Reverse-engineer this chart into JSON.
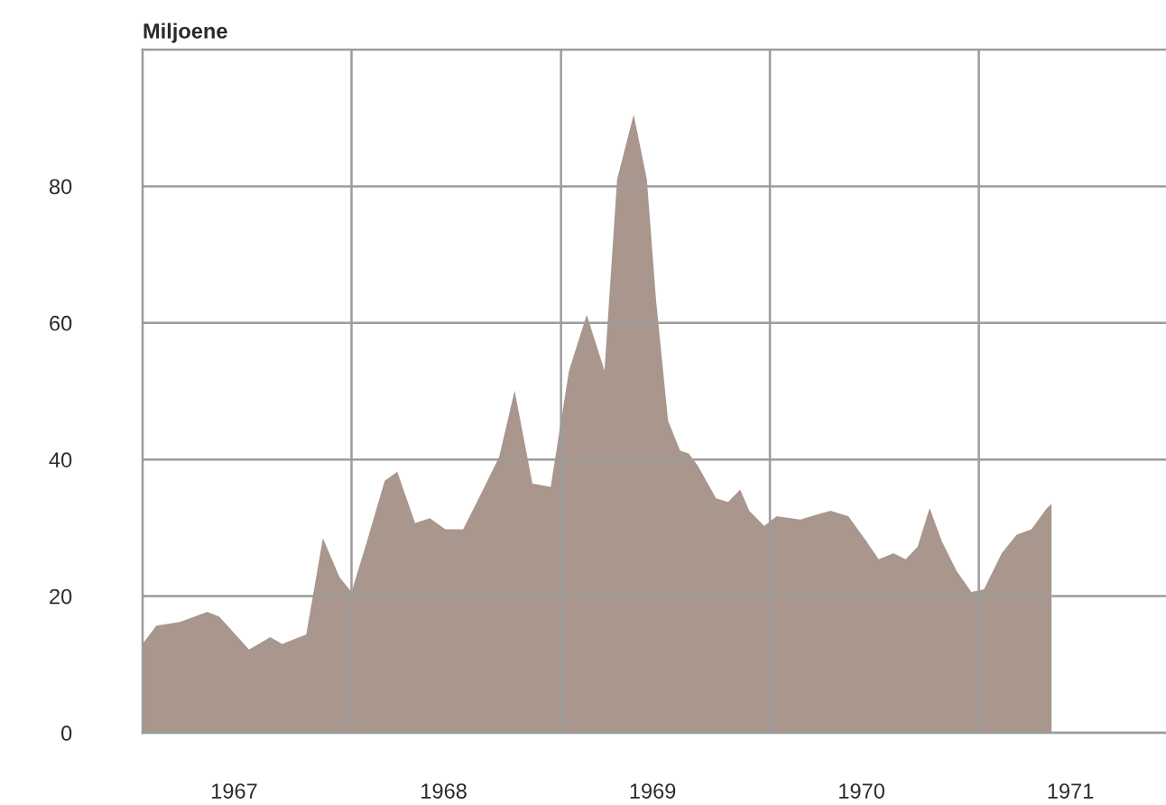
{
  "chart_data": {
    "type": "area",
    "ylabel": "Miljoene",
    "color": "#a9968d",
    "x": [
      "1967-01-01",
      "1967-01-25",
      "1967-03-07",
      "1967-04-24",
      "1967-05-15",
      "1967-07-06",
      "1967-08-12",
      "1967-09-02",
      "1967-10-14",
      "1967-11-12",
      "1967-12-11",
      "1968-01-01",
      "1968-01-28",
      "1968-02-28",
      "1968-03-21",
      "1968-04-21",
      "1968-05-17",
      "1968-06-13",
      "1968-07-14",
      "1968-08-15",
      "1968-09-15",
      "1968-10-12",
      "1968-11-12",
      "1968-12-14",
      "1969-01-15",
      "1969-02-15",
      "1969-03-18",
      "1969-04-09",
      "1969-05-08",
      "1969-05-31",
      "1969-06-16",
      "1969-07-07",
      "1969-07-28",
      "1969-08-12",
      "1969-08-28",
      "1969-09-29",
      "1969-10-20",
      "1969-11-10",
      "1969-11-26",
      "1969-12-22",
      "1970-01-13",
      "1970-02-23",
      "1970-03-26",
      "1970-04-17",
      "1970-05-18",
      "1970-06-18",
      "1970-07-10",
      "1970-08-05",
      "1970-08-26",
      "1970-09-16",
      "1970-10-07",
      "1970-10-28",
      "1970-11-23",
      "1970-12-19",
      "1971-01-10",
      "1971-02-10",
      "1971-03-08",
      "1971-04-03",
      "1971-04-30",
      "1971-05-08"
    ],
    "values": [
      13,
      15.7,
      16.2,
      17.7,
      17,
      12.2,
      14,
      13,
      14.4,
      28.5,
      22.8,
      20.6,
      28,
      36.9,
      38.2,
      30.7,
      31.4,
      29.8,
      29.8,
      35.1,
      40.4,
      50.1,
      36.5,
      36,
      53,
      61.2,
      53,
      81,
      90.5,
      81,
      63.4,
      45.7,
      41.3,
      40.9,
      39.1,
      34.3,
      33.8,
      35.6,
      32.5,
      30.3,
      31.7,
      31.2,
      32,
      32.5,
      31.7,
      28.1,
      25.4,
      26.3,
      25.4,
      27.2,
      32.9,
      28.1,
      23.7,
      20.6,
      21,
      26.3,
      29,
      29.8,
      32.9,
      33.5
    ],
    "xlim": [
      "1967-01-01",
      "1971-11-24"
    ],
    "xticks": [
      {
        "value": "1968-01-01",
        "label": null
      },
      {
        "value": "1969-01-01",
        "label": null
      },
      {
        "value": "1970-01-01",
        "label": null
      },
      {
        "value": "1971-01-01",
        "label": null
      },
      {
        "value": "1967-06-10",
        "label": "1967"
      },
      {
        "value": "1968-06-10",
        "label": "1968"
      },
      {
        "value": "1969-06-10",
        "label": "1969"
      },
      {
        "value": "1970-06-10",
        "label": "1970"
      },
      {
        "value": "1971-06-10",
        "label": "1971"
      }
    ],
    "ylim": [
      0,
      100
    ],
    "yticks": [
      0,
      20,
      40,
      60,
      80
    ],
    "grid": true
  }
}
